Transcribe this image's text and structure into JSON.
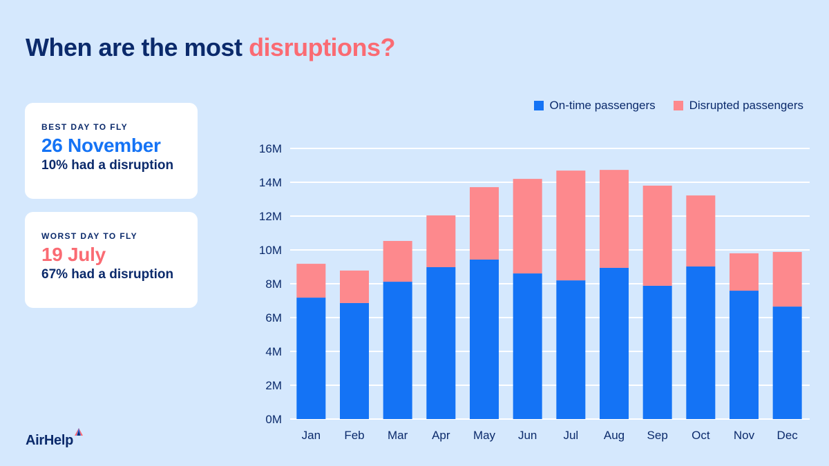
{
  "title": {
    "prefix": "When are the most ",
    "accent": "disruptions?"
  },
  "cards": {
    "best": {
      "kicker": "BEST DAY TO FLY",
      "date": "26 November",
      "stat": "10% had a disruption"
    },
    "worst": {
      "kicker": "WORST DAY TO FLY",
      "date": "19 July",
      "stat": "67% had a disruption"
    }
  },
  "brand": {
    "name": "AirHelp"
  },
  "colors": {
    "background": "#d5e8fd",
    "ontime": "#1473f5",
    "disrupted": "#fd898d",
    "navy": "#0b2a6b",
    "accent": "#fa6b73"
  },
  "chart_data": {
    "type": "bar",
    "stacked": true,
    "title": "",
    "xlabel": "",
    "ylabel": "",
    "ylim": [
      0,
      16000000
    ],
    "yticks": [
      0,
      2000000,
      4000000,
      6000000,
      8000000,
      10000000,
      12000000,
      14000000,
      16000000
    ],
    "ytick_labels": [
      "0M",
      "2M",
      "4M",
      "6M",
      "8M",
      "10M",
      "12M",
      "14M",
      "16M"
    ],
    "grid": true,
    "legend_position": "top-right",
    "categories": [
      "Jan",
      "Feb",
      "Mar",
      "Apr",
      "May",
      "Jun",
      "Jul",
      "Aug",
      "Sep",
      "Oct",
      "Nov",
      "Dec"
    ],
    "series": [
      {
        "name": "On-time passengers",
        "color": "#1473f5",
        "values": [
          7180000,
          6860000,
          8120000,
          8980000,
          9430000,
          8610000,
          8200000,
          8940000,
          7880000,
          9020000,
          7590000,
          6650000
        ]
      },
      {
        "name": "Disrupted passengers",
        "color": "#fd898d",
        "values": [
          2000000,
          1920000,
          2410000,
          3060000,
          4280000,
          5590000,
          6490000,
          5790000,
          5920000,
          4200000,
          2210000,
          3230000
        ]
      }
    ]
  }
}
